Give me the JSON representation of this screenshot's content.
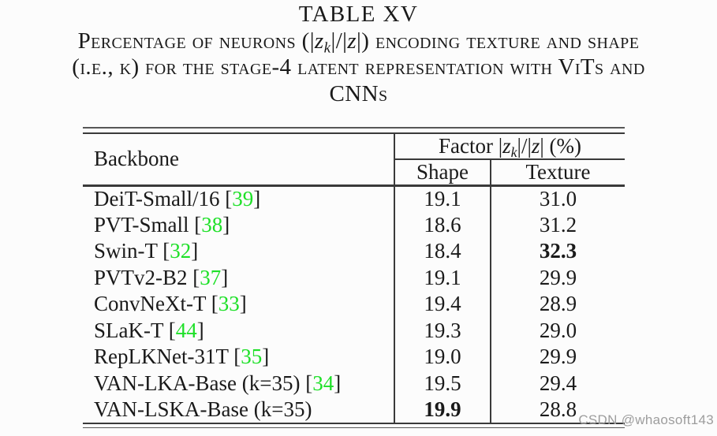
{
  "title": {
    "line1": [
      {
        "t": "n",
        "v": "TABLE XV"
      }
    ],
    "line2": [
      {
        "t": "sc",
        "v": "Percentage of neurons ("
      },
      {
        "t": "n",
        "v": "|"
      },
      {
        "t": "i",
        "v": "z"
      },
      {
        "t": "s",
        "v": "k"
      },
      {
        "t": "n",
        "v": "|/|"
      },
      {
        "t": "i",
        "v": "z"
      },
      {
        "t": "n",
        "v": "|) "
      },
      {
        "t": "sc",
        "v": "encoding texture and shape"
      }
    ],
    "line3": [
      {
        "t": "sc",
        "v": "(i.e., k) for the stage-4 latent representation with ViTs and"
      }
    ],
    "line4": [
      {
        "t": "sc",
        "v": "CNNs"
      }
    ]
  },
  "table": {
    "header": {
      "backbone": "Backbone",
      "factor": [
        {
          "t": "n",
          "v": "Factor |"
        },
        {
          "t": "i",
          "v": "z"
        },
        {
          "t": "s",
          "v": "k"
        },
        {
          "t": "n",
          "v": "|/|"
        },
        {
          "t": "i",
          "v": "z"
        },
        {
          "t": "n",
          "v": "| (%)"
        }
      ],
      "shape": "Shape",
      "texture": "Texture"
    },
    "rows": [
      {
        "backbone": "DeiT-Small/16",
        "cite": "39",
        "shape": "19.1",
        "texture": "31.0",
        "bold": null
      },
      {
        "backbone": "PVT-Small",
        "cite": "38",
        "shape": "18.6",
        "texture": "31.2",
        "bold": null
      },
      {
        "backbone": "Swin-T",
        "cite": "32",
        "shape": "18.4",
        "texture": "32.3",
        "bold": "texture"
      },
      {
        "backbone": "PVTv2-B2",
        "cite": "37",
        "shape": "19.1",
        "texture": "29.9",
        "bold": null
      },
      {
        "backbone": "ConvNeXt-T",
        "cite": "33",
        "shape": "19.4",
        "texture": "28.9",
        "bold": null
      },
      {
        "backbone": "SLaK-T",
        "cite": "44",
        "shape": "19.3",
        "texture": "29.0",
        "bold": null
      },
      {
        "backbone": "RepLKNet-31T",
        "cite": "35",
        "shape": "19.0",
        "texture": "29.9",
        "bold": null
      },
      {
        "backbone": "VAN-LKA-Base (k=35)",
        "cite": "34",
        "shape": "19.5",
        "texture": "29.4",
        "bold": null
      },
      {
        "backbone": "VAN-LSKA-Base (k=35)",
        "cite": null,
        "shape": "19.9",
        "texture": "28.8",
        "bold": "shape"
      }
    ]
  },
  "watermark": "CSDN @whaosoft143",
  "colors": {
    "citation": "#1ee028",
    "text": "#1a1a1a",
    "rule": "#3a3a3a",
    "watermark": "#9d9d9d",
    "background": "#fcfcfc"
  }
}
